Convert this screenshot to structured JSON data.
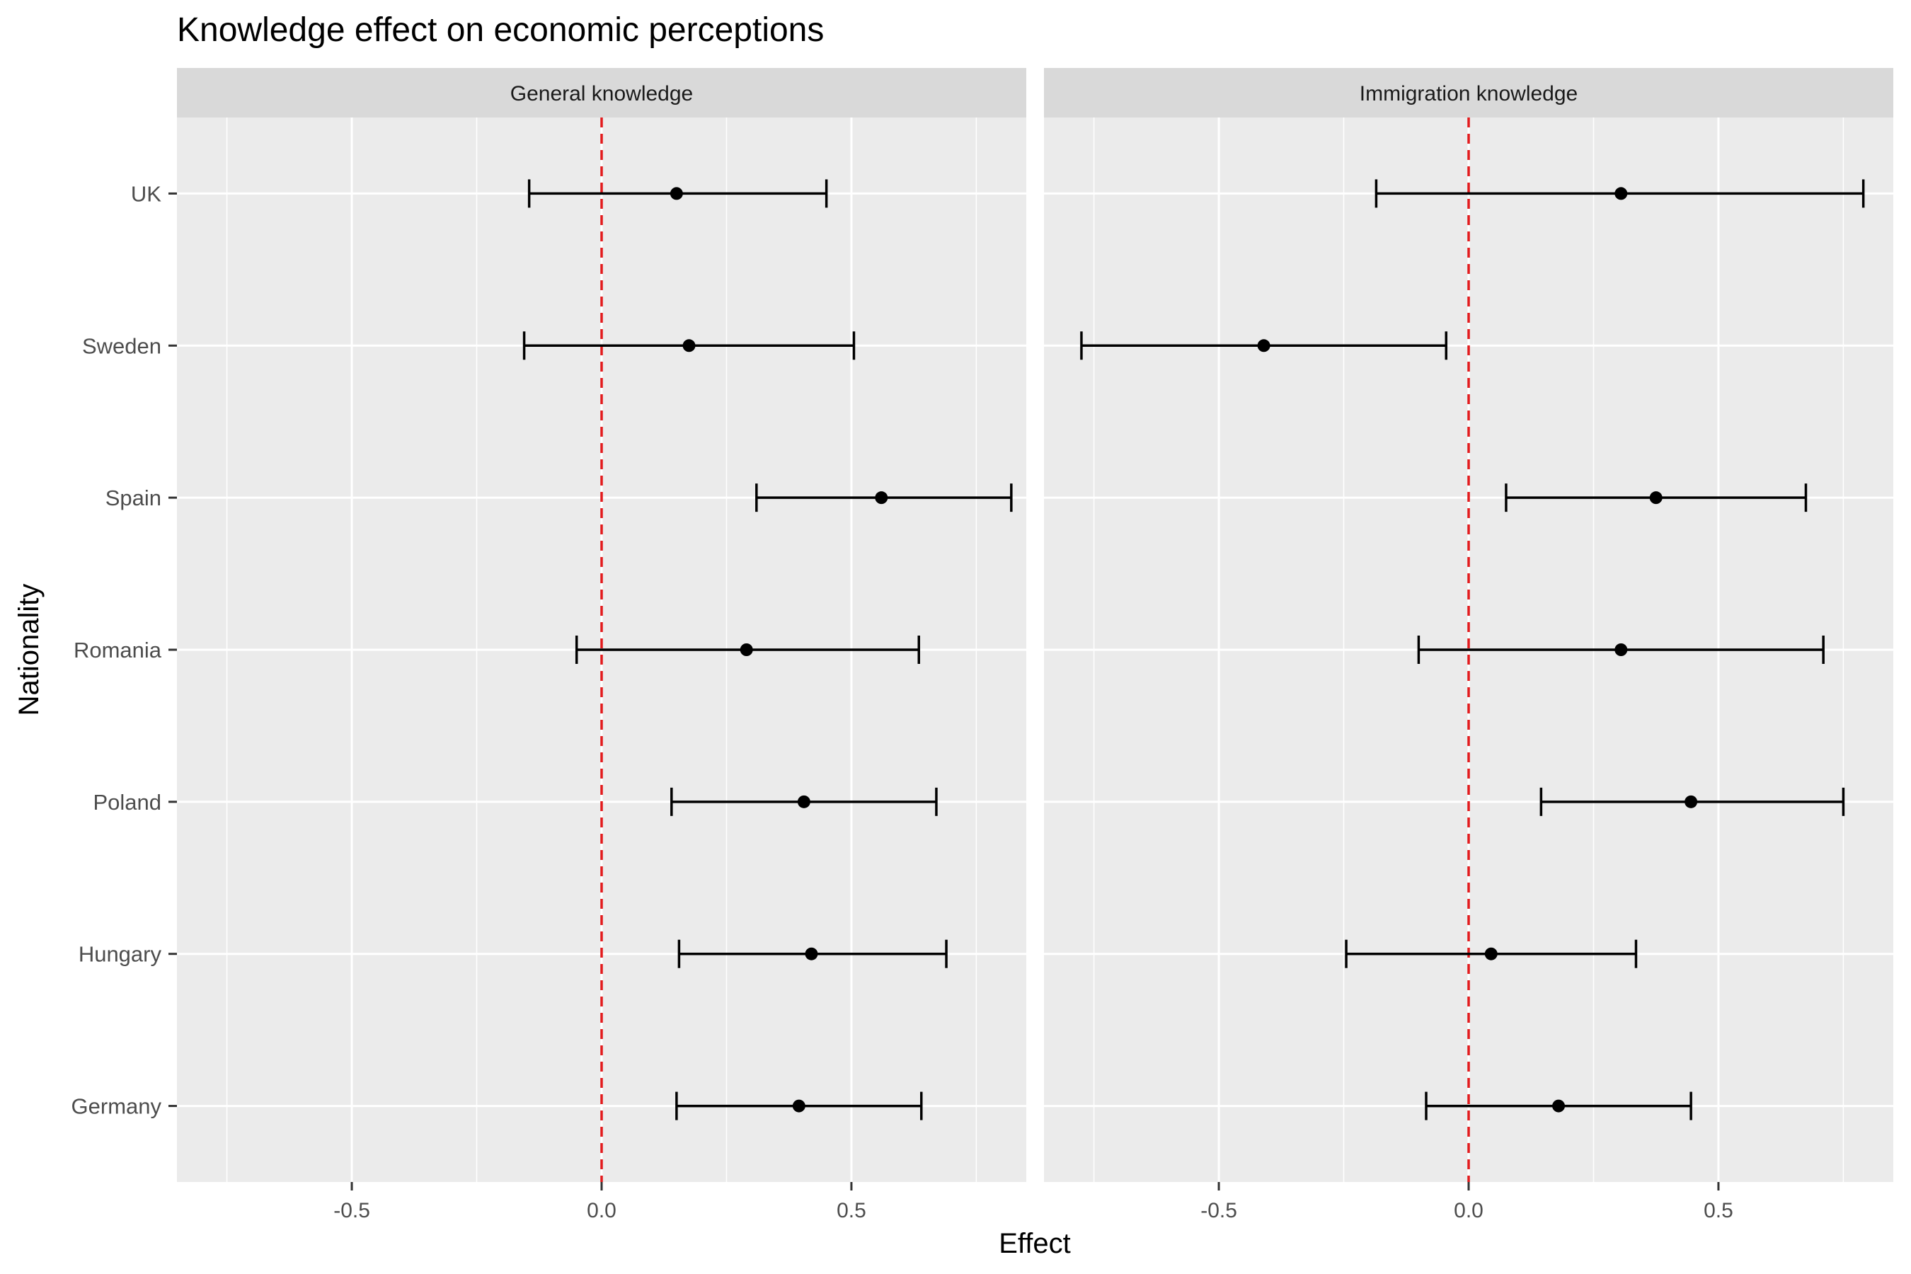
{
  "chart_data": {
    "type": "errorbar",
    "title": "Knowledge effect on economic perceptions",
    "xlabel": "Effect",
    "ylabel": "Nationality",
    "categories": [
      "UK",
      "Sweden",
      "Spain",
      "Romania",
      "Poland",
      "Hungary",
      "Germany"
    ],
    "xlim": [
      -0.85,
      0.85
    ],
    "xticks": [
      -0.5,
      0.0,
      0.5
    ],
    "xtick_labels": [
      "-0.5",
      "0.0",
      "0.5"
    ],
    "reference_line": {
      "x": 0,
      "color": "#e31a1c",
      "style": "dashed"
    },
    "grid": true,
    "legend": "none",
    "panels": [
      {
        "name": "General knowledge",
        "points": [
          {
            "label": "UK",
            "estimate": 0.15,
            "lower": -0.145,
            "upper": 0.45
          },
          {
            "label": "Sweden",
            "estimate": 0.175,
            "lower": -0.155,
            "upper": 0.505
          },
          {
            "label": "Spain",
            "estimate": 0.56,
            "lower": 0.31,
            "upper": 0.82
          },
          {
            "label": "Romania",
            "estimate": 0.29,
            "lower": -0.05,
            "upper": 0.635
          },
          {
            "label": "Poland",
            "estimate": 0.405,
            "lower": 0.14,
            "upper": 0.67
          },
          {
            "label": "Hungary",
            "estimate": 0.42,
            "lower": 0.155,
            "upper": 0.69
          },
          {
            "label": "Germany",
            "estimate": 0.395,
            "lower": 0.15,
            "upper": 0.64
          }
        ]
      },
      {
        "name": "Immigration knowledge",
        "points": [
          {
            "label": "UK",
            "estimate": 0.305,
            "lower": -0.185,
            "upper": 0.79
          },
          {
            "label": "Sweden",
            "estimate": -0.41,
            "lower": -0.775,
            "upper": -0.045
          },
          {
            "label": "Spain",
            "estimate": 0.375,
            "lower": 0.075,
            "upper": 0.675
          },
          {
            "label": "Romania",
            "estimate": 0.305,
            "lower": -0.1,
            "upper": 0.71
          },
          {
            "label": "Poland",
            "estimate": 0.445,
            "lower": 0.145,
            "upper": 0.75
          },
          {
            "label": "Hungary",
            "estimate": 0.045,
            "lower": -0.245,
            "upper": 0.335
          },
          {
            "label": "Germany",
            "estimate": 0.18,
            "lower": -0.085,
            "upper": 0.445
          }
        ]
      }
    ],
    "colors": {
      "panel_bg": "#ebebeb",
      "strip_bg": "#d9d9d9",
      "grid": "#ffffff",
      "point": "#000000",
      "reference": "#e31a1c",
      "text": "#000000",
      "tick_text": "#4d4d4d"
    }
  }
}
